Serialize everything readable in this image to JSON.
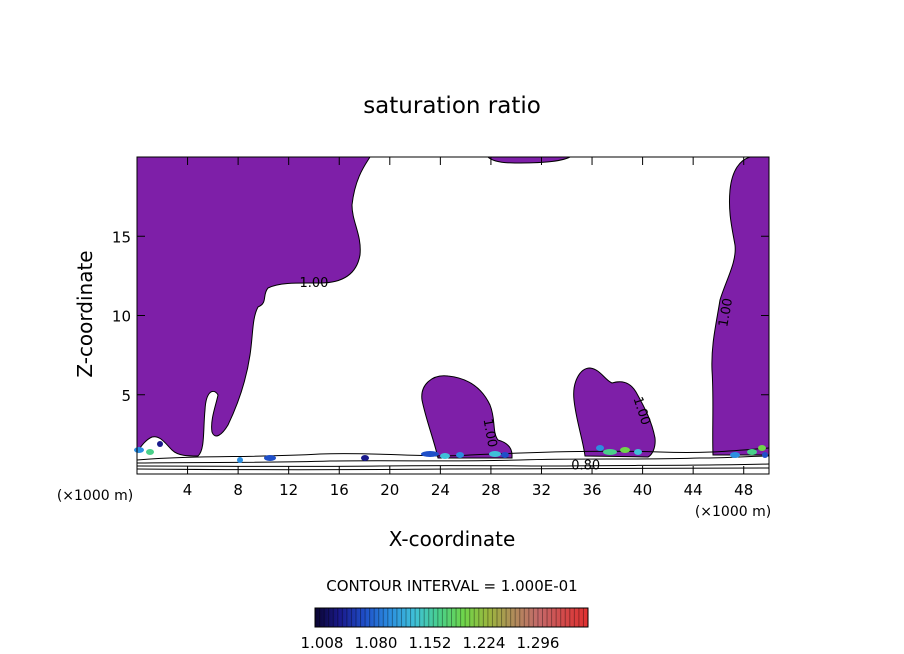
{
  "chart_data": {
    "type": "contour",
    "title": "saturation ratio",
    "xlabel": "X-coordinate",
    "ylabel": "Z-coordinate",
    "x_unit_label": "(×1000 m)",
    "xlim": [
      0,
      50
    ],
    "ylim": [
      0,
      20
    ],
    "x_ticks": [
      4,
      8,
      12,
      16,
      20,
      24,
      28,
      32,
      36,
      40,
      44,
      48
    ],
    "y_ticks": [
      5,
      10,
      15
    ],
    "fill_color": "#7e1fa8",
    "contour_labels": [
      {
        "text": "1.00",
        "x": 14,
        "z": 12.1,
        "angle": 0
      },
      {
        "text": "1.00",
        "x": 46.5,
        "z": 10.2,
        "angle": -80
      },
      {
        "text": "1.00",
        "x": 28,
        "z": 2.6,
        "angle": 80
      },
      {
        "text": "1.00",
        "x": 40,
        "z": 4.0,
        "angle": 72
      },
      {
        "text": "0.80",
        "x": 35.5,
        "z": 0.6,
        "angle": 0
      }
    ],
    "contour_interval_text": "CONTOUR INTERVAL = 1.000E-01",
    "colorbar_ticks": [
      "1.008",
      "1.080",
      "1.152",
      "1.224",
      "1.296"
    ],
    "colorbar_colors": [
      "#0a0530",
      "#1a1a8c",
      "#1f4fc8",
      "#2b8ee0",
      "#3fc0d8",
      "#49d08a",
      "#6fd54a",
      "#9bb63e",
      "#b08c5a",
      "#c46a6a",
      "#d24a4a",
      "#e03030"
    ]
  }
}
